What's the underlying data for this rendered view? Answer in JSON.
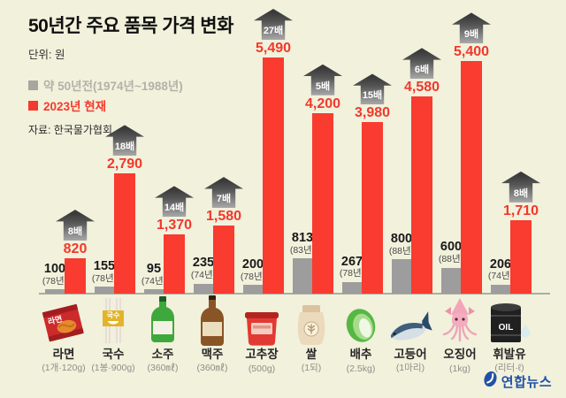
{
  "header": {
    "title": "50년간 주요 품목 가격 변화",
    "unit": "단위: 원",
    "legend": [
      {
        "label": "약 50년전(1974년~1988년)",
        "swatch_color": "#a7a7a0",
        "text_color": "#b3b2a9"
      },
      {
        "label": "2023년 현재",
        "swatch_color": "#f5392c",
        "text_color": "#f5392c"
      }
    ],
    "source": "자료: 한국물가협회"
  },
  "chart_data": {
    "type": "bar",
    "title": "50년간 주요 품목 가격 변화",
    "unit": "원",
    "categories": [
      "라면",
      "국수",
      "소주",
      "맥주",
      "고추장",
      "쌀",
      "배추",
      "고등어",
      "오징어",
      "휘발유"
    ],
    "units": [
      "(1개·120g)",
      "(1봉·900g)",
      "(360㎖)",
      "(360㎖)",
      "(500g)",
      "(1되)",
      "(2.5kg)",
      "(1마리)",
      "(1kg)",
      "(리터·ℓ)"
    ],
    "icons": [
      "ramen",
      "noodles",
      "soju",
      "beer",
      "gochujang",
      "rice",
      "cabbage",
      "mackerel",
      "squid",
      "oil"
    ],
    "icon_texts": {
      "0": "라면",
      "1": "국수",
      "9": "OIL"
    },
    "multipliers": [
      "8배",
      "18배",
      "14배",
      "7배",
      "27배",
      "5배",
      "15배",
      "6배",
      "9배",
      "8배"
    ],
    "series": [
      {
        "name": "약 50년전(1974년~1988년)",
        "color": "#9d9d9d",
        "values": [
          100,
          155,
          95,
          235,
          200,
          813,
          267,
          800,
          600,
          206
        ],
        "value_labels": [
          "100",
          "155",
          "95",
          "235",
          "200",
          "813",
          "267",
          "800",
          "600",
          "206"
        ],
        "year_labels": [
          "(78년)",
          "(78년)",
          "(74년)",
          "(74년)",
          "(78년)",
          "(83년)",
          "(78년)",
          "(88년)",
          "(88년)",
          "(74년)"
        ]
      },
      {
        "name": "2023년 현재",
        "color": "#f93b30",
        "text_color": "#f2382b",
        "values": [
          820,
          2790,
          1370,
          1580,
          5490,
          4200,
          3980,
          4580,
          5400,
          1710
        ],
        "value_labels": [
          "820",
          "2,790",
          "1,370",
          "1,580",
          "5,490",
          "4,200",
          "3,980",
          "4,580",
          "5,400",
          "1,710"
        ]
      }
    ],
    "ylim": [
      0,
      5500
    ],
    "grid": false,
    "legend_position": "top-left"
  },
  "footer": {
    "logo": "연합뉴스",
    "logo_color": "#2151a5"
  }
}
